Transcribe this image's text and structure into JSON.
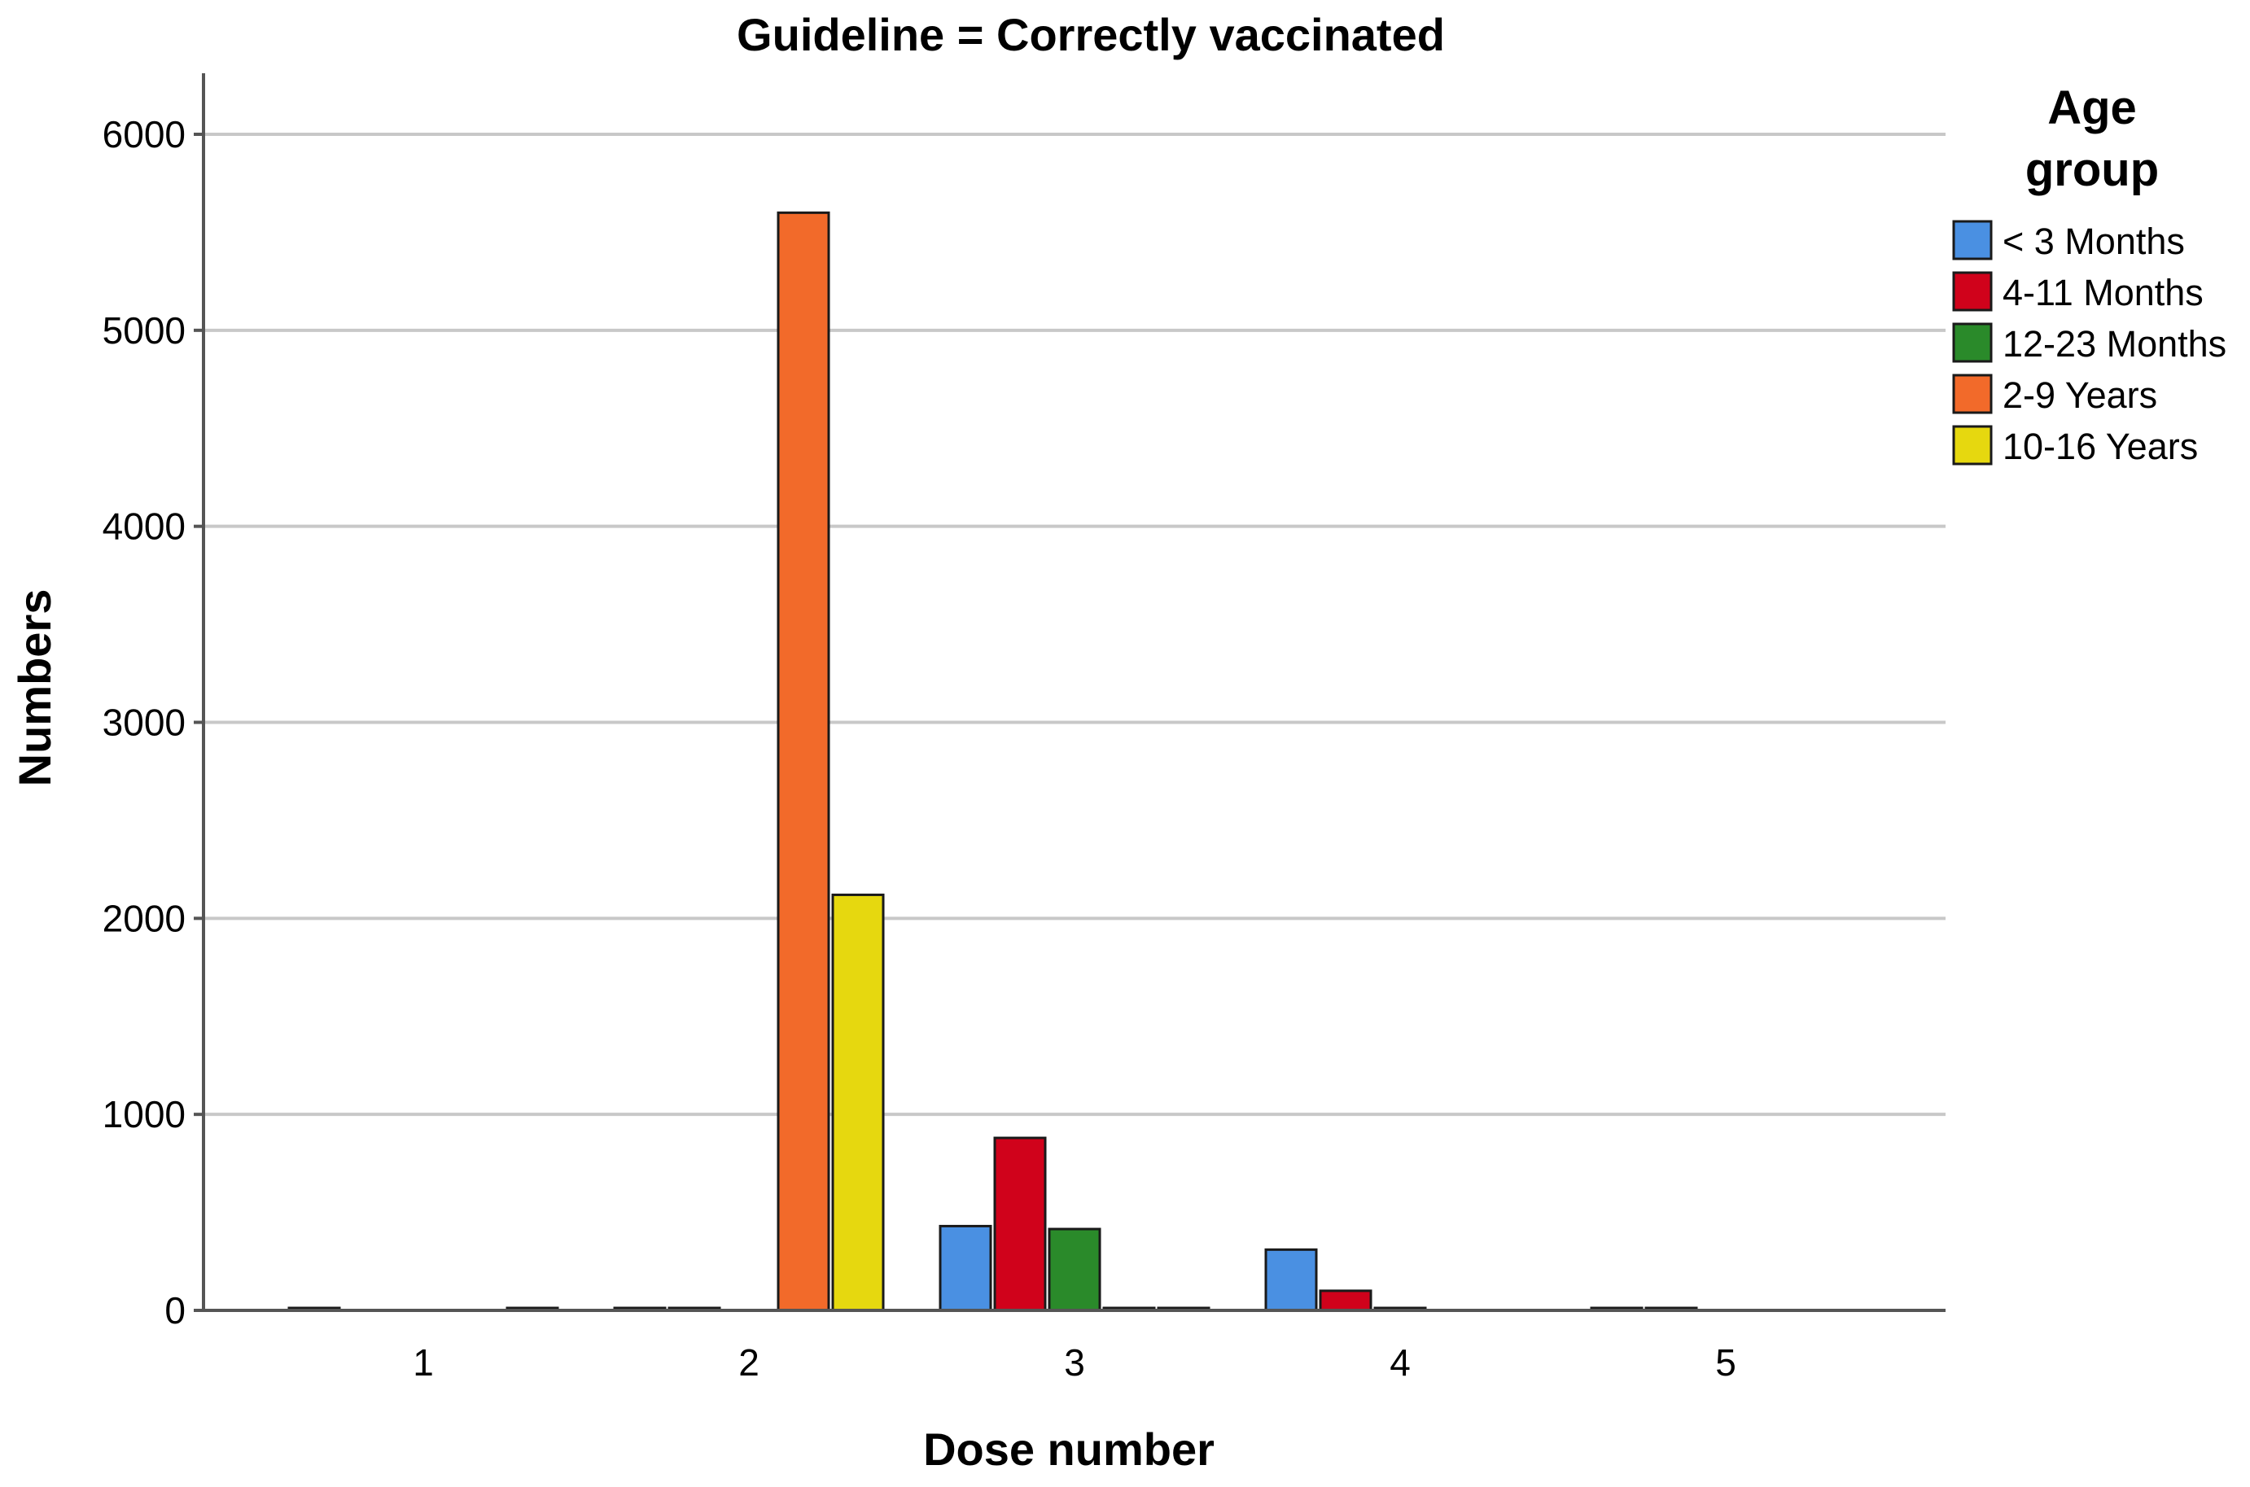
{
  "chart_data": {
    "type": "bar",
    "title": "Guideline = Correctly vaccinated",
    "xlabel": "Dose number",
    "ylabel": "Numbers",
    "categories": [
      "1",
      "2",
      "3",
      "4",
      "5"
    ],
    "ylim": [
      0,
      6000
    ],
    "yticks": [
      "0",
      "1000",
      "2000",
      "3000",
      "4000",
      "5000",
      "6000"
    ],
    "grid": true,
    "legend": {
      "title_lines": [
        "Age",
        "group"
      ],
      "placement": "top-right"
    },
    "series": [
      {
        "name": "< 3 Months",
        "color": "#4a90e2",
        "values": [
          5,
          5,
          430,
          310,
          5
        ]
      },
      {
        "name": "4-11 Months",
        "color": "#d0021b",
        "values": [
          0,
          5,
          880,
          100,
          5
        ]
      },
      {
        "name": "12-23 Months",
        "color": "#2a8a2a",
        "values": [
          0,
          0,
          415,
          5,
          0
        ]
      },
      {
        "name": "2-9 Years",
        "color": "#f26a2a",
        "values": [
          0,
          5600,
          10,
          0,
          0
        ]
      },
      {
        "name": "10-16 Years",
        "color": "#e6d80f",
        "values": [
          5,
          2120,
          5,
          0,
          0
        ]
      }
    ]
  }
}
